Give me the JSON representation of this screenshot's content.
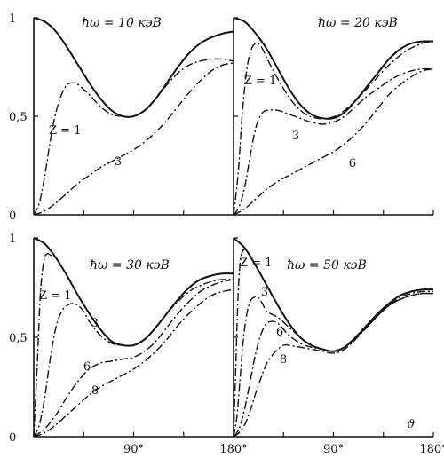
{
  "chart_data": [
    {
      "type": "line",
      "title": "ħω = 10 кэВ",
      "xlim": [
        0,
        180
      ],
      "ylim": [
        0,
        1
      ],
      "y_ticks": [
        "0",
        "0,5",
        "1"
      ],
      "x_ticks": [],
      "xlabel": "",
      "series": [
        {
          "name": "",
          "label": "",
          "style": "solid",
          "x": [
            0,
            10,
            20,
            30,
            40,
            50,
            60,
            70,
            80,
            90,
            100,
            110,
            120,
            130,
            140,
            150,
            160,
            170,
            180
          ],
          "y": [
            1.0,
            0.98,
            0.93,
            0.85,
            0.76,
            0.67,
            0.59,
            0.53,
            0.5,
            0.5,
            0.53,
            0.59,
            0.67,
            0.75,
            0.82,
            0.87,
            0.9,
            0.92,
            0.93
          ]
        },
        {
          "name": "",
          "label": "Z = 1",
          "style": "dashdot",
          "x": [
            0,
            5,
            10,
            15,
            20,
            25,
            30,
            35,
            40,
            50,
            60,
            70,
            80,
            90,
            100,
            110,
            120,
            130,
            140,
            150,
            160,
            170,
            180
          ],
          "y": [
            0.0,
            0.06,
            0.2,
            0.38,
            0.52,
            0.61,
            0.66,
            0.67,
            0.66,
            0.61,
            0.55,
            0.51,
            0.5,
            0.5,
            0.53,
            0.59,
            0.66,
            0.72,
            0.76,
            0.78,
            0.79,
            0.79,
            0.78
          ]
        },
        {
          "name": "",
          "label": "3",
          "style": "dashdot",
          "x": [
            0,
            10,
            20,
            30,
            40,
            50,
            60,
            70,
            80,
            90,
            100,
            110,
            120,
            130,
            140,
            150,
            160,
            170,
            180
          ],
          "y": [
            0.0,
            0.02,
            0.06,
            0.11,
            0.16,
            0.2,
            0.24,
            0.27,
            0.3,
            0.33,
            0.37,
            0.42,
            0.48,
            0.55,
            0.62,
            0.68,
            0.73,
            0.76,
            0.77
          ]
        }
      ]
    },
    {
      "type": "line",
      "title": "ħω = 20 кэВ",
      "xlim": [
        0,
        180
      ],
      "ylim": [
        0,
        1
      ],
      "y_ticks": [],
      "x_ticks": [],
      "xlabel": "",
      "series": [
        {
          "name": "",
          "label": "",
          "style": "solid",
          "x": [
            0,
            10,
            20,
            30,
            40,
            50,
            60,
            70,
            80,
            90,
            100,
            110,
            120,
            130,
            140,
            150,
            160,
            170,
            180
          ],
          "y": [
            1.0,
            0.98,
            0.92,
            0.84,
            0.74,
            0.64,
            0.56,
            0.51,
            0.49,
            0.49,
            0.52,
            0.58,
            0.65,
            0.72,
            0.79,
            0.84,
            0.87,
            0.88,
            0.88
          ]
        },
        {
          "name": "",
          "label": "Z = 1",
          "style": "dashdot",
          "x": [
            0,
            4,
            8,
            12,
            16,
            20,
            24,
            28,
            35,
            45,
            55,
            65,
            75,
            85,
            95,
            110,
            125,
            140,
            155,
            170,
            180
          ],
          "y": [
            0.0,
            0.2,
            0.52,
            0.74,
            0.84,
            0.87,
            0.86,
            0.82,
            0.74,
            0.64,
            0.56,
            0.51,
            0.49,
            0.49,
            0.51,
            0.58,
            0.67,
            0.76,
            0.83,
            0.87,
            0.88
          ]
        },
        {
          "name": "",
          "label": "3",
          "style": "dashdot",
          "x": [
            0,
            5,
            10,
            15,
            20,
            25,
            30,
            40,
            50,
            60,
            70,
            80,
            90,
            100,
            110,
            120,
            130,
            140,
            150,
            160,
            170,
            180
          ],
          "y": [
            0.0,
            0.04,
            0.14,
            0.3,
            0.44,
            0.51,
            0.53,
            0.53,
            0.51,
            0.49,
            0.47,
            0.46,
            0.47,
            0.5,
            0.55,
            0.6,
            0.64,
            0.68,
            0.71,
            0.73,
            0.74,
            0.74
          ]
        },
        {
          "name": "",
          "label": "6",
          "style": "dashdot",
          "x": [
            0,
            10,
            20,
            30,
            40,
            50,
            60,
            70,
            80,
            90,
            100,
            110,
            120,
            130,
            140,
            150,
            160,
            170,
            180
          ],
          "y": [
            0.0,
            0.03,
            0.08,
            0.13,
            0.17,
            0.2,
            0.23,
            0.26,
            0.29,
            0.32,
            0.36,
            0.41,
            0.47,
            0.54,
            0.61,
            0.66,
            0.7,
            0.73,
            0.74
          ]
        }
      ]
    },
    {
      "type": "line",
      "title": "ħω = 30 кэВ",
      "xlim": [
        0,
        180
      ],
      "ylim": [
        0,
        1
      ],
      "y_ticks": [
        "0",
        "0,5",
        "1"
      ],
      "x_ticks": [
        "90°",
        "180°"
      ],
      "xlabel": "",
      "series": [
        {
          "name": "",
          "label": "",
          "style": "solid",
          "x": [
            0,
            10,
            20,
            30,
            40,
            50,
            60,
            70,
            80,
            90,
            100,
            110,
            120,
            130,
            140,
            150,
            160,
            170,
            180
          ],
          "y": [
            1.0,
            0.97,
            0.9,
            0.81,
            0.71,
            0.62,
            0.54,
            0.48,
            0.46,
            0.46,
            0.49,
            0.55,
            0.62,
            0.69,
            0.75,
            0.79,
            0.81,
            0.82,
            0.82
          ]
        },
        {
          "name": "",
          "label": "Z = 1",
          "style": "dashdot",
          "x": [
            0,
            3,
            6,
            9,
            12,
            16,
            20,
            30,
            40,
            50,
            60,
            70,
            80,
            90,
            100,
            110,
            120,
            130,
            140,
            150,
            160,
            170,
            180
          ],
          "y": [
            0.0,
            0.35,
            0.72,
            0.88,
            0.92,
            0.91,
            0.9,
            0.81,
            0.71,
            0.62,
            0.54,
            0.48,
            0.46,
            0.46,
            0.49,
            0.55,
            0.62,
            0.69,
            0.75,
            0.79,
            0.81,
            0.82,
            0.82
          ]
        },
        {
          "name": "",
          "label": "3",
          "style": "dashdot",
          "x": [
            0,
            5,
            10,
            15,
            20,
            25,
            30,
            35,
            40,
            45,
            50,
            60,
            70,
            80,
            90,
            100,
            110,
            120,
            130,
            140,
            150,
            160,
            170,
            180
          ],
          "y": [
            0.0,
            0.06,
            0.2,
            0.4,
            0.55,
            0.63,
            0.66,
            0.67,
            0.66,
            0.63,
            0.58,
            0.51,
            0.47,
            0.46,
            0.46,
            0.49,
            0.55,
            0.62,
            0.68,
            0.73,
            0.76,
            0.78,
            0.79,
            0.79
          ]
        },
        {
          "name": "",
          "label": "6",
          "style": "dashdot",
          "x": [
            0,
            10,
            20,
            30,
            40,
            50,
            60,
            70,
            80,
            90,
            100,
            110,
            120,
            130,
            140,
            150,
            160,
            170,
            180
          ],
          "y": [
            0.0,
            0.04,
            0.11,
            0.2,
            0.28,
            0.34,
            0.37,
            0.38,
            0.39,
            0.4,
            0.43,
            0.48,
            0.55,
            0.62,
            0.68,
            0.73,
            0.76,
            0.78,
            0.79
          ]
        },
        {
          "name": "",
          "label": "8",
          "style": "dashdot",
          "x": [
            0,
            10,
            20,
            30,
            40,
            50,
            60,
            70,
            80,
            90,
            100,
            110,
            120,
            130,
            140,
            150,
            160,
            170,
            180
          ],
          "y": [
            0.0,
            0.02,
            0.06,
            0.11,
            0.16,
            0.21,
            0.25,
            0.28,
            0.31,
            0.34,
            0.38,
            0.43,
            0.49,
            0.56,
            0.62,
            0.67,
            0.71,
            0.73,
            0.74
          ]
        }
      ]
    },
    {
      "type": "line",
      "title": "ħω = 50 кэВ",
      "xlim": [
        0,
        180
      ],
      "ylim": [
        0,
        1
      ],
      "y_ticks": [],
      "x_ticks": [
        "90°",
        "180°"
      ],
      "xlabel": "ϑ",
      "series": [
        {
          "name": "",
          "label": "",
          "style": "solid",
          "x": [
            0,
            10,
            20,
            30,
            40,
            50,
            60,
            70,
            80,
            90,
            100,
            110,
            120,
            130,
            140,
            150,
            160,
            170,
            180
          ],
          "y": [
            1.0,
            0.95,
            0.86,
            0.76,
            0.66,
            0.57,
            0.5,
            0.46,
            0.44,
            0.43,
            0.45,
            0.5,
            0.56,
            0.62,
            0.67,
            0.71,
            0.73,
            0.74,
            0.74
          ]
        },
        {
          "name": "",
          "label": "Z = 1",
          "style": "dashdot",
          "x": [
            0,
            2,
            4,
            6,
            8,
            10,
            14,
            20,
            30,
            40,
            50,
            60,
            70,
            80,
            90,
            100,
            110,
            120,
            130,
            140,
            150,
            160,
            170,
            180
          ],
          "y": [
            0.0,
            0.35,
            0.7,
            0.88,
            0.93,
            0.94,
            0.92,
            0.86,
            0.76,
            0.66,
            0.57,
            0.5,
            0.46,
            0.44,
            0.43,
            0.45,
            0.5,
            0.56,
            0.62,
            0.67,
            0.71,
            0.73,
            0.74,
            0.74
          ]
        },
        {
          "name": "",
          "label": "3",
          "style": "dashdot",
          "x": [
            0,
            3,
            6,
            9,
            12,
            15,
            18,
            22,
            26,
            30,
            40,
            50,
            60,
            70,
            80,
            90,
            100,
            110,
            120,
            130,
            140,
            150,
            160,
            170,
            180
          ],
          "y": [
            0.0,
            0.1,
            0.3,
            0.5,
            0.62,
            0.68,
            0.7,
            0.7,
            0.67,
            0.63,
            0.6,
            0.55,
            0.5,
            0.46,
            0.44,
            0.43,
            0.45,
            0.5,
            0.56,
            0.61,
            0.66,
            0.7,
            0.72,
            0.73,
            0.73
          ]
        },
        {
          "name": "",
          "label": "6",
          "style": "dashdot",
          "x": [
            0,
            5,
            10,
            15,
            20,
            25,
            30,
            35,
            40,
            45,
            50,
            60,
            70,
            80,
            90,
            100,
            110,
            120,
            130,
            140,
            150,
            160,
            170,
            180
          ],
          "y": [
            0.0,
            0.04,
            0.14,
            0.28,
            0.42,
            0.52,
            0.57,
            0.58,
            0.57,
            0.54,
            0.51,
            0.47,
            0.45,
            0.44,
            0.43,
            0.45,
            0.5,
            0.55,
            0.61,
            0.66,
            0.69,
            0.71,
            0.72,
            0.72
          ]
        },
        {
          "name": "",
          "label": "8",
          "style": "dashdot",
          "x": [
            0,
            5,
            10,
            15,
            20,
            25,
            30,
            35,
            40,
            45,
            50,
            60,
            70,
            80,
            90,
            100,
            110,
            120,
            130,
            140,
            150,
            160,
            170,
            180
          ],
          "y": [
            0.0,
            0.02,
            0.06,
            0.13,
            0.22,
            0.3,
            0.37,
            0.41,
            0.44,
            0.46,
            0.46,
            0.45,
            0.44,
            0.43,
            0.42,
            0.44,
            0.49,
            0.55,
            0.61,
            0.66,
            0.69,
            0.71,
            0.72,
            0.72
          ]
        }
      ]
    }
  ]
}
